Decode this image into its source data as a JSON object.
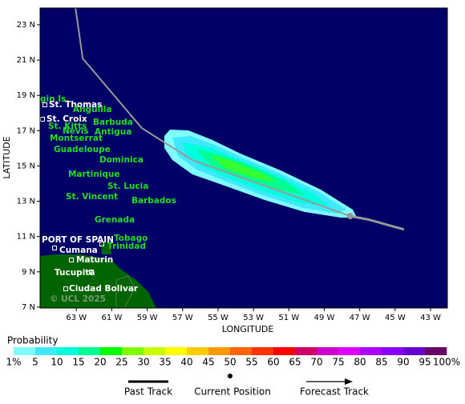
{
  "map": {
    "xlim": [
      65.05,
      42.05
    ],
    "ylim": [
      6.95,
      23.95
    ],
    "xticks": [
      {
        "value": 63,
        "label": "63 W"
      },
      {
        "value": 61,
        "label": "61 W"
      },
      {
        "value": 59,
        "label": "59 W"
      },
      {
        "value": 57,
        "label": "57 W"
      },
      {
        "value": 55,
        "label": "55 W"
      },
      {
        "value": 53,
        "label": "53 W"
      },
      {
        "value": 51,
        "label": "51 W"
      },
      {
        "value": 49,
        "label": "49 W"
      },
      {
        "value": 47,
        "label": "47 W"
      },
      {
        "value": 45,
        "label": "45 W"
      },
      {
        "value": 43,
        "label": "43 W"
      }
    ],
    "yticks": [
      {
        "value": 23,
        "label": "23 N"
      },
      {
        "value": 21,
        "label": "21 N"
      },
      {
        "value": 19,
        "label": "19 N"
      },
      {
        "value": 17,
        "label": "17 N"
      },
      {
        "value": 15,
        "label": "15 N"
      },
      {
        "value": 13,
        "label": "13 N"
      },
      {
        "value": 11,
        "label": "11 N"
      },
      {
        "value": 9,
        "label": "9 N"
      },
      {
        "value": 7,
        "label": "7 N"
      }
    ],
    "xlabel": "LONGITUDE",
    "ylabel": "LATITUDE",
    "places": [
      "gin Is.",
      "St. Thomas",
      "Anguilla",
      "St. Croix",
      "Barbuda",
      "St. Kitts",
      "Nevis",
      "Antigua",
      "Montserrat",
      "Guadeloupe",
      "Dominica",
      "Martinique",
      "St. Lucia",
      "St. Vincent",
      "Barbados",
      "Grenada",
      "PORT OF SPAIN",
      "Tobago",
      "Trinidad",
      "Cumana",
      "Maturin",
      "Tucupita",
      "Ciudad Bolivar"
    ],
    "copyright": "© UCL 2025",
    "past_track": {
      "lon": [
        63.05,
        62.64,
        59.3,
        56.45,
        49.44,
        47.54
      ],
      "lat": [
        23.95,
        21.09,
        17.14,
        15.33,
        12.84,
        12.16
      ],
      "color": "#999999"
    },
    "current_position": {
      "lon": 47.54,
      "lat": 12.16
    },
    "forecast_track": {
      "lon": [
        47.54,
        46.5,
        44.5
      ],
      "lat": [
        12.16,
        11.96,
        11.4
      ]
    }
  },
  "legend": {
    "title": "Probability",
    "labels": [
      "1%",
      "5",
      "10",
      "15",
      "20",
      "25",
      "30",
      "35",
      "40",
      "45",
      "50",
      "55",
      "60",
      "65",
      "70",
      "75",
      "80",
      "85",
      "90",
      "95",
      "100%"
    ],
    "colors": [
      "#80ffff",
      "#40e8ff",
      "#00ffdd",
      "#00ff90",
      "#00ff00",
      "#80ff00",
      "#c8ff00",
      "#ffff00",
      "#ffcc00",
      "#ff9900",
      "#ff6600",
      "#ff3300",
      "#ff0000",
      "#cc0066",
      "#cc00cc",
      "#dd00ff",
      "#aa00ff",
      "#8800ff",
      "#6600cc",
      "#660066"
    ],
    "items": [
      "Past Track",
      "Current Position",
      "Forecast Track"
    ]
  }
}
